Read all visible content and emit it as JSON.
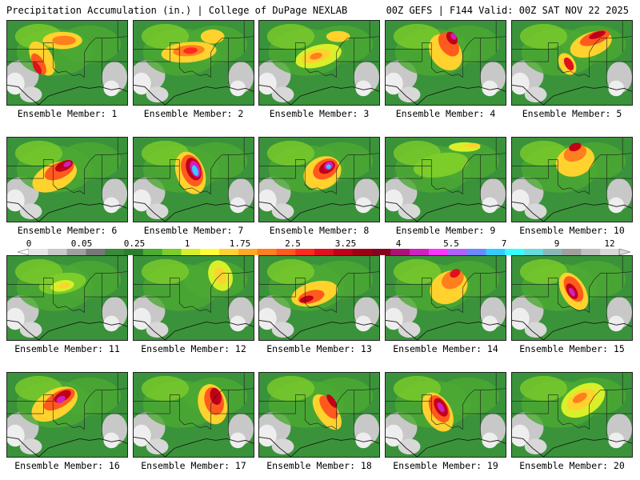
{
  "header": {
    "left": "Precipitation Accumulation (in.) | College of DuPage NEXLAB",
    "right": "00Z GEFS | F144 Valid: 00Z SAT NOV 22 2025"
  },
  "colorbar": {
    "tick_labels": [
      "0",
      "0.05",
      "0.25",
      "1",
      "1.75",
      "2.5",
      "3.25",
      "4",
      "5.5",
      "7",
      "9",
      "12"
    ],
    "colors": [
      "#e6e6e6",
      "#c8c8c8",
      "#a0a0a0",
      "#787878",
      "#3a8a3a",
      "#2e7d2e",
      "#4caa33",
      "#7ccc2a",
      "#d8f02a",
      "#ffff33",
      "#ffd22e",
      "#ffaa22",
      "#ff7f1e",
      "#ff5a1e",
      "#ff2a1e",
      "#e0101e",
      "#c00018",
      "#a00014",
      "#880020",
      "#b0107a",
      "#d020c0",
      "#ff33ff",
      "#b060ff",
      "#6a88ff",
      "#33ccff",
      "#33ffff",
      "#66dddd",
      "#8ab8b8",
      "#a0a0a0",
      "#c0c0c0",
      "#d8d8d8"
    ]
  },
  "members": [
    {
      "label": "Ensemble Member: 1",
      "blobs": [
        [
          44,
          48,
          26,
          48,
          -30,
          "#ffd22e"
        ],
        [
          40,
          55,
          14,
          30,
          -30,
          "#ff5a1e"
        ],
        [
          38,
          60,
          8,
          18,
          -30,
          "#e0101e"
        ],
        [
          70,
          25,
          50,
          22,
          0,
          "#ffd22e"
        ],
        [
          72,
          25,
          30,
          12,
          0,
          "#ff7f1e"
        ]
      ]
    },
    {
      "label": "Ensemble Member: 2",
      "blobs": [
        [
          70,
          40,
          70,
          26,
          -5,
          "#ffd22e"
        ],
        [
          70,
          38,
          40,
          14,
          -5,
          "#ff7f1e"
        ],
        [
          72,
          38,
          18,
          8,
          -5,
          "#ff2a1e"
        ],
        [
          100,
          20,
          30,
          18,
          0,
          "#ffd22e"
        ]
      ]
    },
    {
      "label": "Ensemble Member: 3",
      "blobs": [
        [
          75,
          45,
          60,
          28,
          -15,
          "#d8f02a"
        ],
        [
          72,
          45,
          38,
          16,
          -15,
          "#ffd22e"
        ],
        [
          72,
          45,
          16,
          8,
          -15,
          "#ff7f1e"
        ],
        [
          100,
          20,
          30,
          14,
          0,
          "#ffd22e"
        ]
      ]
    },
    {
      "label": "Ensemble Member: 4",
      "blobs": [
        [
          76,
          40,
          38,
          50,
          -35,
          "#ffd22e"
        ],
        [
          80,
          30,
          22,
          34,
          -35,
          "#ff5a1e"
        ],
        [
          84,
          22,
          12,
          18,
          -35,
          "#c00018"
        ],
        [
          86,
          20,
          6,
          9,
          -35,
          "#d020c0"
        ]
      ]
    },
    {
      "label": "Ensemble Member: 5",
      "blobs": [
        [
          100,
          30,
          55,
          30,
          -20,
          "#ffd22e"
        ],
        [
          105,
          22,
          40,
          16,
          -20,
          "#ff5a1e"
        ],
        [
          108,
          18,
          22,
          8,
          -20,
          "#c00018"
        ],
        [
          70,
          55,
          20,
          30,
          -30,
          "#ffd22e"
        ],
        [
          72,
          55,
          10,
          18,
          -30,
          "#e0101e"
        ]
      ]
    },
    {
      "label": "Ensemble Member: 6",
      "blobs": [
        [
          60,
          50,
          60,
          34,
          -25,
          "#ffd22e"
        ],
        [
          66,
          42,
          40,
          20,
          -25,
          "#ff5a1e"
        ],
        [
          72,
          36,
          24,
          12,
          -25,
          "#c00018"
        ],
        [
          76,
          34,
          10,
          6,
          -25,
          "#d020c0"
        ]
      ]
    },
    {
      "label": "Ensemble Member: 7",
      "blobs": [
        [
          72,
          45,
          36,
          56,
          -20,
          "#ffd22e"
        ],
        [
          74,
          42,
          26,
          42,
          -20,
          "#ff5a1e"
        ],
        [
          76,
          40,
          18,
          30,
          -20,
          "#c00018"
        ],
        [
          78,
          40,
          12,
          22,
          -20,
          "#d020c0"
        ],
        [
          78,
          42,
          7,
          14,
          -20,
          "#33ccff"
        ]
      ]
    },
    {
      "label": "Ensemble Member: 8",
      "blobs": [
        [
          80,
          45,
          50,
          40,
          -30,
          "#ffd22e"
        ],
        [
          84,
          40,
          34,
          24,
          -30,
          "#ff5a1e"
        ],
        [
          86,
          38,
          22,
          14,
          -30,
          "#c00018"
        ],
        [
          88,
          36,
          12,
          10,
          -30,
          "#d020c0"
        ],
        [
          88,
          37,
          6,
          6,
          -30,
          "#33ccff"
        ]
      ]
    },
    {
      "label": "Ensemble Member: 9",
      "blobs": [
        [
          70,
          35,
          70,
          30,
          -10,
          "#7ccc2a"
        ],
        [
          100,
          12,
          40,
          12,
          0,
          "#d8f02a"
        ],
        [
          110,
          10,
          20,
          6,
          0,
          "#ffd22e"
        ]
      ]
    },
    {
      "label": "Ensemble Member: 10",
      "blobs": [
        [
          80,
          30,
          50,
          38,
          -20,
          "#ffd22e"
        ],
        [
          80,
          20,
          30,
          20,
          -20,
          "#ff7f1e"
        ],
        [
          80,
          12,
          16,
          10,
          -20,
          "#c00018"
        ]
      ]
    },
    {
      "label": "Ensemble Member: 11",
      "blobs": [
        [
          70,
          35,
          60,
          26,
          -10,
          "#7ccc2a"
        ],
        [
          70,
          38,
          30,
          14,
          -10,
          "#d8f02a"
        ],
        [
          72,
          38,
          14,
          6,
          -10,
          "#ffd22e"
        ]
      ]
    },
    {
      "label": "Ensemble Member: 12",
      "blobs": [
        [
          110,
          25,
          30,
          40,
          -20,
          "#d8f02a"
        ],
        [
          110,
          25,
          14,
          22,
          -20,
          "#ffd22e"
        ]
      ]
    },
    {
      "label": "Ensemble Member: 13",
      "blobs": [
        [
          70,
          48,
          60,
          30,
          -15,
          "#ffd22e"
        ],
        [
          66,
          52,
          34,
          16,
          -15,
          "#ff5a1e"
        ],
        [
          60,
          55,
          18,
          8,
          -15,
          "#c00018"
        ]
      ]
    },
    {
      "label": "Ensemble Member: 14",
      "blobs": [
        [
          80,
          40,
          50,
          40,
          -30,
          "#ffd22e"
        ],
        [
          85,
          30,
          30,
          22,
          -30,
          "#ff7f1e"
        ],
        [
          88,
          22,
          14,
          10,
          -30,
          "#e0101e"
        ]
      ]
    },
    {
      "label": "Ensemble Member: 15",
      "blobs": [
        [
          78,
          45,
          30,
          52,
          -30,
          "#ffd22e"
        ],
        [
          78,
          42,
          20,
          36,
          -30,
          "#ff5a1e"
        ],
        [
          76,
          45,
          12,
          22,
          -30,
          "#c00018"
        ],
        [
          76,
          46,
          6,
          12,
          -30,
          "#d020c0"
        ]
      ]
    },
    {
      "label": "Ensemble Member: 16",
      "blobs": [
        [
          60,
          40,
          64,
          36,
          -30,
          "#ffd22e"
        ],
        [
          66,
          34,
          44,
          20,
          -30,
          "#ff5a1e"
        ],
        [
          70,
          30,
          24,
          12,
          -30,
          "#c00018"
        ],
        [
          68,
          34,
          12,
          8,
          -30,
          "#d020c0"
        ]
      ]
    },
    {
      "label": "Ensemble Member: 17",
      "blobs": [
        [
          100,
          40,
          36,
          52,
          -15,
          "#ffd22e"
        ],
        [
          102,
          36,
          24,
          36,
          -15,
          "#ff5a1e"
        ],
        [
          104,
          30,
          14,
          22,
          -15,
          "#c00018"
        ]
      ]
    },
    {
      "label": "Ensemble Member: 18",
      "blobs": [
        [
          86,
          50,
          26,
          52,
          -35,
          "#ffd22e"
        ],
        [
          88,
          44,
          16,
          34,
          -35,
          "#ff5a1e"
        ],
        [
          92,
          36,
          8,
          20,
          -35,
          "#c00018"
        ]
      ]
    },
    {
      "label": "Ensemble Member: 19",
      "blobs": [
        [
          66,
          50,
          34,
          54,
          -30,
          "#ffd22e"
        ],
        [
          68,
          46,
          22,
          38,
          -30,
          "#ff5a1e"
        ],
        [
          70,
          44,
          14,
          26,
          -30,
          "#c00018"
        ],
        [
          70,
          44,
          7,
          14,
          -30,
          "#d020c0"
        ]
      ]
    },
    {
      "label": "Ensemble Member: 20",
      "blobs": [
        [
          90,
          35,
          60,
          38,
          -30,
          "#d8f02a"
        ],
        [
          88,
          34,
          40,
          22,
          -30,
          "#ffd22e"
        ],
        [
          86,
          32,
          20,
          10,
          -30,
          "#ff7f1e"
        ]
      ]
    }
  ]
}
